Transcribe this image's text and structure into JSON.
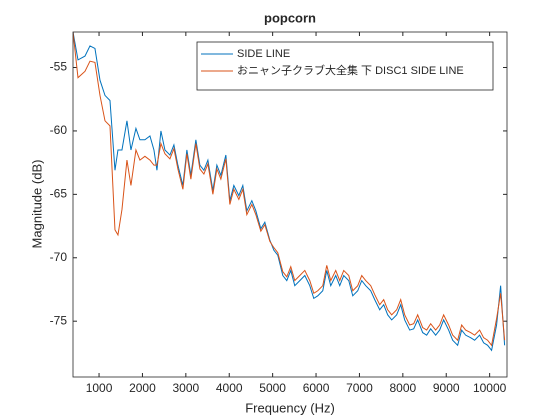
{
  "chart_data": {
    "type": "line",
    "title": "popcorn",
    "xlabel": "Frequency (Hz)",
    "ylabel": "Magnitude (dB)",
    "x": [
      400,
      515,
      676,
      791,
      906,
      1022,
      1137,
      1252,
      1367,
      1436,
      1528,
      1643,
      1735,
      1850,
      1942,
      2057,
      2173,
      2265,
      2334,
      2426,
      2518,
      2633,
      2725,
      2817,
      2932,
      3024,
      3116,
      3231,
      3324,
      3416,
      3508,
      3623,
      3715,
      3807,
      3922,
      4014,
      4106,
      4221,
      4313,
      4405,
      4521,
      4613,
      4728,
      4820,
      4935,
      5027,
      5119,
      5234,
      5326,
      5418,
      5510,
      5626,
      5741,
      5856,
      5948,
      6040,
      6155,
      6247,
      6339,
      6454,
      6546,
      6638,
      6754,
      6846,
      6961,
      7053,
      7145,
      7260,
      7352,
      7467,
      7559,
      7651,
      7743,
      7858,
      7951,
      8043,
      8158,
      8250,
      8342,
      8457,
      8549,
      8641,
      8756,
      8848,
      8940,
      9055,
      9148,
      9263,
      9355,
      9447,
      9562,
      9654,
      9769,
      9861,
      9953,
      10045,
      10160,
      10253,
      10345
    ],
    "series": [
      {
        "name": "SIDE LINE",
        "color": "#0072BD",
        "values": [
          -52.2,
          -54.4,
          -54.1,
          -53.3,
          -53.5,
          -56.0,
          -57.2,
          -57.6,
          -63.1,
          -61.5,
          -61.5,
          -59.2,
          -61.5,
          -59.8,
          -60.7,
          -60.7,
          -60.4,
          -61.5,
          -63.1,
          -60.0,
          -61.5,
          -61.9,
          -61.1,
          -62.7,
          -64.3,
          -61.5,
          -63.5,
          -60.7,
          -62.7,
          -63.1,
          -62.3,
          -64.7,
          -62.7,
          -63.5,
          -61.9,
          -65.5,
          -64.3,
          -65.1,
          -64.3,
          -66.3,
          -65.5,
          -66.3,
          -67.7,
          -67.2,
          -68.6,
          -69.4,
          -69.8,
          -71.4,
          -71.8,
          -71.0,
          -72.2,
          -71.8,
          -71.4,
          -72.2,
          -73.2,
          -73.0,
          -72.6,
          -71.0,
          -72.2,
          -71.4,
          -72.2,
          -71.4,
          -71.8,
          -73.0,
          -72.6,
          -71.8,
          -72.2,
          -72.6,
          -73.3,
          -74.1,
          -73.7,
          -74.5,
          -74.9,
          -74.5,
          -73.7,
          -74.9,
          -75.7,
          -75.6,
          -74.9,
          -75.9,
          -76.1,
          -75.6,
          -76.1,
          -75.7,
          -74.9,
          -75.7,
          -76.5,
          -76.9,
          -75.7,
          -76.1,
          -76.3,
          -76.5,
          -76.1,
          -76.7,
          -76.9,
          -77.3,
          -75.3,
          -72.2,
          -76.9
        ]
      },
      {
        "name": "おニャン子クラブ大全集 下 DISC1 SIDE LINE",
        "color": "#D95319",
        "values": [
          -52.2,
          -55.8,
          -55.3,
          -54.5,
          -54.6,
          -57.2,
          -59.2,
          -59.6,
          -67.8,
          -68.2,
          -66.2,
          -62.3,
          -64.3,
          -61.5,
          -62.3,
          -62.0,
          -62.3,
          -62.7,
          -62.7,
          -61.0,
          -61.8,
          -62.2,
          -61.4,
          -63.0,
          -64.6,
          -61.8,
          -63.8,
          -61.0,
          -63.0,
          -63.4,
          -62.6,
          -65.0,
          -63.0,
          -63.8,
          -62.2,
          -65.8,
          -64.6,
          -65.4,
          -64.6,
          -66.6,
          -65.8,
          -66.6,
          -67.9,
          -67.4,
          -68.7,
          -69.2,
          -69.6,
          -71.1,
          -71.5,
          -70.7,
          -71.8,
          -71.4,
          -71.0,
          -71.8,
          -72.8,
          -72.6,
          -72.2,
          -70.6,
          -71.8,
          -71.0,
          -71.8,
          -71.0,
          -71.4,
          -72.6,
          -72.2,
          -71.4,
          -71.8,
          -72.2,
          -72.9,
          -73.7,
          -73.3,
          -74.1,
          -74.5,
          -74.1,
          -73.3,
          -74.5,
          -75.3,
          -75.2,
          -74.5,
          -75.5,
          -75.7,
          -75.2,
          -75.7,
          -75.3,
          -74.5,
          -75.3,
          -76.1,
          -76.5,
          -75.3,
          -75.7,
          -75.9,
          -76.1,
          -75.7,
          -76.3,
          -76.5,
          -76.9,
          -74.8,
          -72.8,
          -76.5
        ]
      }
    ],
    "xlim": [
      400,
      10400
    ],
    "ylim": [
      -79.4,
      -52.2
    ],
    "xticks": [
      1000,
      2000,
      3000,
      4000,
      5000,
      6000,
      7000,
      8000,
      9000,
      10000
    ],
    "yticks": [
      -75,
      -70,
      -65,
      -60,
      -55
    ],
    "legend": "northeast"
  }
}
